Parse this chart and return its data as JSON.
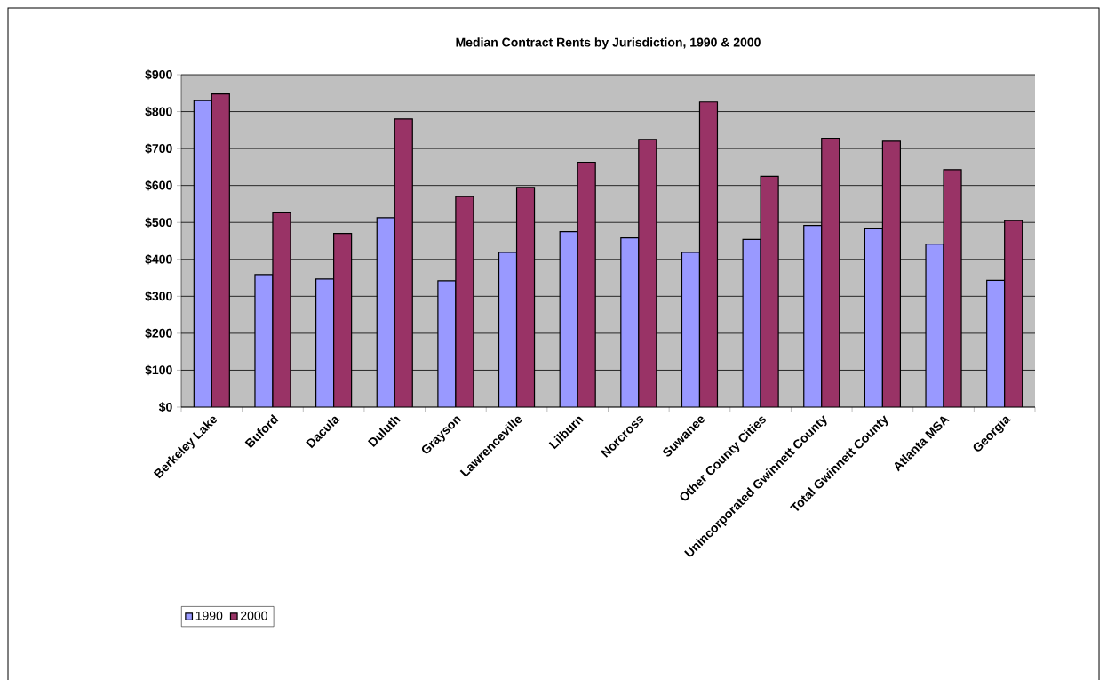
{
  "chart_data": {
    "type": "bar",
    "title": "Median Contract Rents by Jurisdiction, 1990 & 2000",
    "categories": [
      "Berkeley Lake",
      "Buford",
      "Dacula",
      "Duluth",
      "Grayson",
      "Lawrenceville",
      "Lilburn",
      "Norcross",
      "Suwanee",
      "Other County Cities",
      "Unincorporated Gwinnett County",
      "Total Gwinnett County",
      "Atlanta MSA",
      "Georgia"
    ],
    "series": [
      {
        "name": "1990",
        "color": "#9999ff",
        "values": [
          830,
          359,
          347,
          513,
          342,
          419,
          475,
          458,
          419,
          454,
          492,
          483,
          441,
          343
        ]
      },
      {
        "name": "2000",
        "color": "#993366",
        "values": [
          848,
          526,
          470,
          780,
          570,
          595,
          663,
          725,
          826,
          625,
          728,
          720,
          643,
          505
        ]
      }
    ],
    "ylim": [
      0,
      900
    ],
    "yticks": [
      {
        "value": 0,
        "label": "$0"
      },
      {
        "value": 100,
        "label": "$100"
      },
      {
        "value": 200,
        "label": "$200"
      },
      {
        "value": 300,
        "label": "$300"
      },
      {
        "value": 400,
        "label": "$400"
      },
      {
        "value": 500,
        "label": "$500"
      },
      {
        "value": 600,
        "label": "$600"
      },
      {
        "value": 700,
        "label": "$700"
      },
      {
        "value": 800,
        "label": "$800"
      },
      {
        "value": 900,
        "label": "$900"
      }
    ],
    "grid": "y",
    "legend": "bottom left"
  }
}
